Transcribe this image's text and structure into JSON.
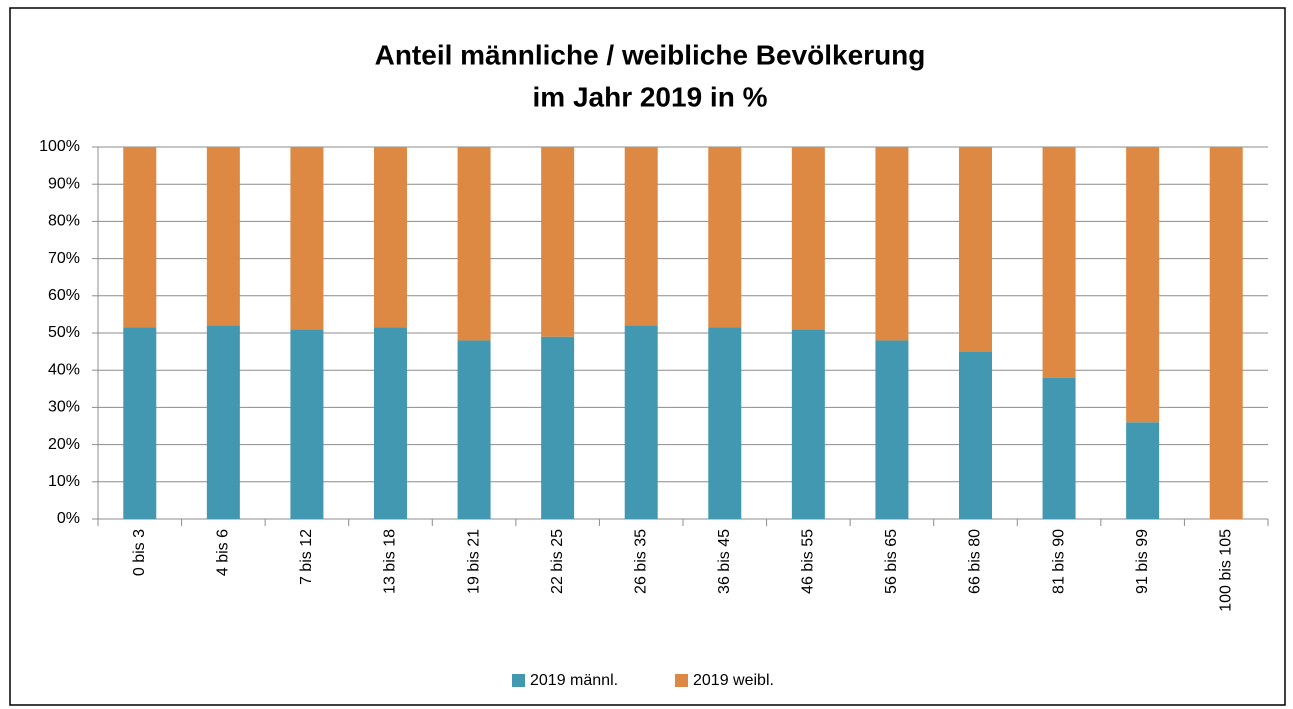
{
  "chart_data": {
    "type": "stacked_bar",
    "title": [
      "Anteil männliche / weibliche Bevölkerung",
      "im Jahr 2019 in %"
    ],
    "categories": [
      "0 bis 3",
      "4 bis 6",
      "7 bis 12",
      "13 bis 18",
      "19 bis 21",
      "22 bis 25",
      "26 bis 35",
      "36 bis 45",
      "46 bis 55",
      "56 bis 65",
      "66 bis 80",
      "81 bis 90",
      "91 bis 99",
      "100 bis 105"
    ],
    "series": [
      {
        "name": "2019 männl.",
        "color": "#4198b0",
        "values": [
          51.5,
          52,
          51,
          51.5,
          48,
          49,
          52,
          51.5,
          51,
          48,
          45,
          38,
          26,
          0
        ]
      },
      {
        "name": "2019 weibl.",
        "color": "#dd8843",
        "values": [
          48.5,
          48,
          49,
          48.5,
          52,
          51,
          48,
          48.5,
          49,
          52,
          55,
          62,
          74,
          100
        ]
      }
    ],
    "ylim": [
      0,
      100
    ],
    "yticks": [
      {
        "value": 0,
        "label": "0%"
      },
      {
        "value": 10,
        "label": "10%"
      },
      {
        "value": 20,
        "label": "20%"
      },
      {
        "value": 30,
        "label": "30%"
      },
      {
        "value": 40,
        "label": "40%"
      },
      {
        "value": 50,
        "label": "50%"
      },
      {
        "value": 60,
        "label": "60%"
      },
      {
        "value": 70,
        "label": "70%"
      },
      {
        "value": 80,
        "label": "80%"
      },
      {
        "value": 90,
        "label": "90%"
      },
      {
        "value": 100,
        "label": "100%"
      }
    ],
    "grid": true,
    "legend": "bottom"
  }
}
